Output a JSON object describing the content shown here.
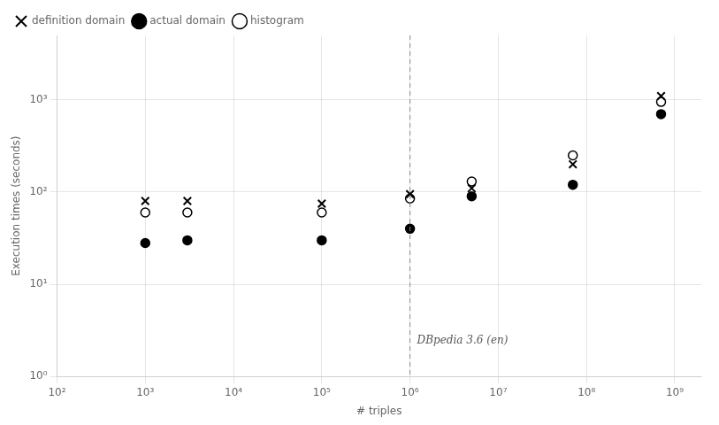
{
  "chart_data": {
    "type": "scatter",
    "log": true,
    "x_label": "# triples",
    "y_label": "Execution times (seconds)",
    "xlim": [
      100,
      2000000000
    ],
    "ylim": [
      1,
      5000
    ],
    "xticks": [
      {
        "value": 100,
        "label": "10²"
      },
      {
        "value": 1000,
        "label": "10³"
      },
      {
        "value": 10000,
        "label": "10⁴"
      },
      {
        "value": 100000,
        "label": "10⁵"
      },
      {
        "value": 1000000,
        "label": "10⁶"
      },
      {
        "value": 10000000,
        "label": "10⁷"
      },
      {
        "value": 100000000,
        "label": "10⁸"
      },
      {
        "value": 1000000000,
        "label": "10⁹"
      }
    ],
    "yticks": [
      {
        "value": 1,
        "label": "10⁰"
      },
      {
        "value": 10,
        "label": "10¹"
      },
      {
        "value": 100,
        "label": "10²"
      },
      {
        "value": 1000,
        "label": "10³"
      }
    ],
    "grid": true,
    "legend": "upper left",
    "x": [
      1000,
      3000,
      100000,
      1000000,
      5000000,
      70000000,
      700000000
    ],
    "series": [
      {
        "name": "definition domain",
        "color": "#000000",
        "marker": "x",
        "values": [
          80,
          80,
          75,
          95,
          110,
          200,
          1100
        ]
      },
      {
        "name": "actual domain",
        "color": "#000000",
        "marker": "circle",
        "values": [
          28,
          30,
          30,
          40,
          90,
          120,
          700
        ]
      },
      {
        "name": "histogram",
        "color": "#000000",
        "marker": "open_circle",
        "values": [
          60,
          60,
          60,
          85,
          130,
          250,
          950
        ]
      }
    ],
    "annotations": [
      {
        "text": "DBpedia 3.6 (en)",
        "x": 1000000
      }
    ]
  }
}
